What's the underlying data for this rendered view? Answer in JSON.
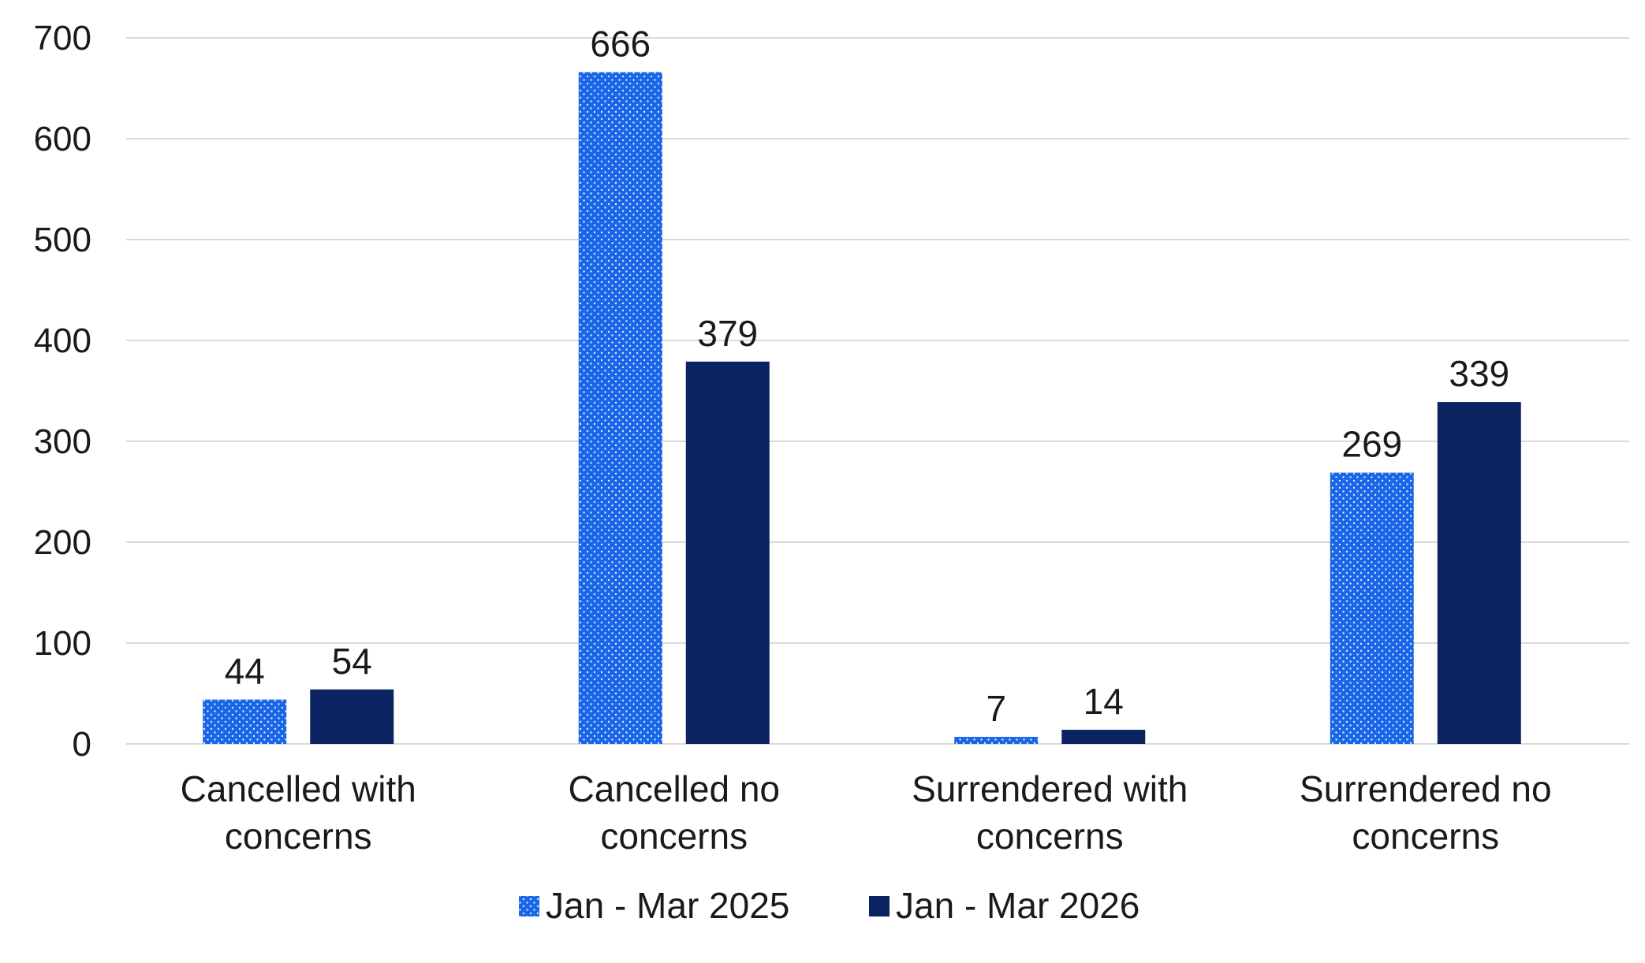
{
  "chart_data": {
    "type": "bar",
    "title": "",
    "xlabel": "",
    "ylabel": "",
    "ylim": [
      0,
      700
    ],
    "yticks": [
      0,
      100,
      200,
      300,
      400,
      500,
      600,
      700
    ],
    "grid": true,
    "legend_position": "bottom",
    "categories": [
      [
        "Cancelled with",
        "concerns"
      ],
      [
        "Cancelled no",
        "concerns"
      ],
      [
        "Surrendered with",
        "concerns"
      ],
      [
        "Surrendered no",
        "concerns"
      ]
    ],
    "series": [
      {
        "name": "Jan - Mar 2025",
        "values": [
          44,
          666,
          7,
          269
        ],
        "color": "#1a66e8",
        "pattern": "dotted"
      },
      {
        "name": "Jan - Mar 2026",
        "values": [
          54,
          379,
          14,
          339
        ],
        "color": "#0b2360",
        "pattern": "solid"
      }
    ],
    "colors": {
      "grid": "#d9d9d9",
      "axis": "#d9d9d9",
      "text": "#1a1a1a"
    }
  }
}
